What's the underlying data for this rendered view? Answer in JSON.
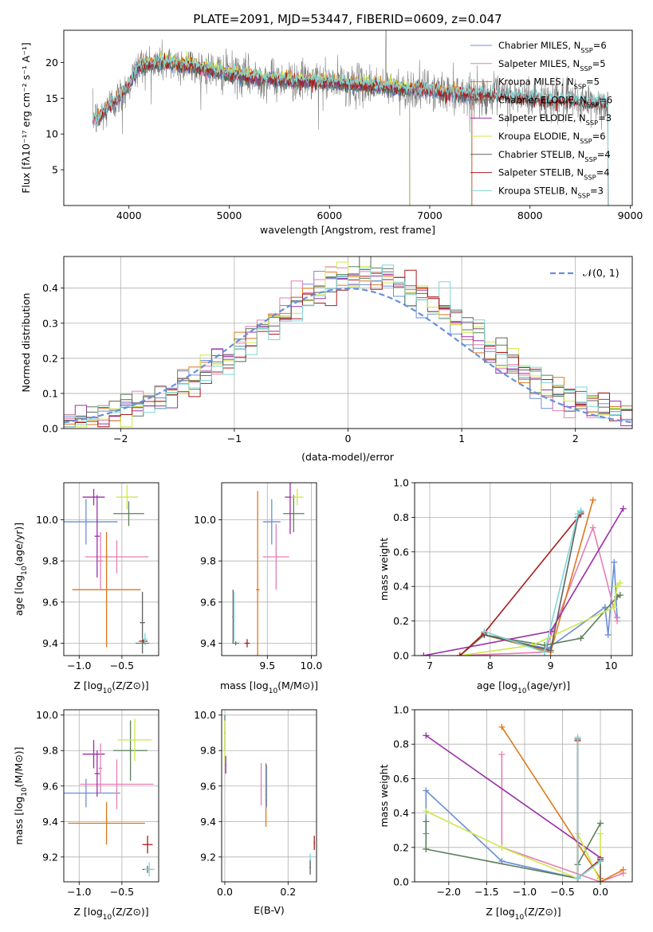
{
  "title": "PLATE=2091, MJD=53447, FIBERID=0609, z=0.047",
  "colors": {
    "chabrier_miles": "#6a8fd8",
    "salpeter_miles": "#e47fb5",
    "kroupa_miles": "#e0771a",
    "chabrier_elodie": "#5b7f5b",
    "salpeter_elodie": "#9b2fa8",
    "kroupa_elodie": "#cde84a",
    "chabrier_stelib": "#606060",
    "salpeter_stelib": "#a81c1c",
    "kroupa_stelib": "#7ed6d6"
  },
  "chart_data": [
    {
      "id": "spectrum",
      "type": "line",
      "xlabel": "wavelength [Angstrom, rest frame]",
      "ylabel": "Flux [fλ10⁻¹⁷ erg cm⁻² s⁻¹ A⁻¹]",
      "xlim": [
        3350,
        9020
      ],
      "ylim": [
        0,
        24.5
      ],
      "xticks": [
        4000,
        5000,
        6000,
        7000,
        8000,
        9000
      ],
      "yticks": [
        5,
        10,
        15,
        20
      ],
      "legend_position": "top-right",
      "continuum": {
        "x": [
          3640,
          3700,
          3800,
          3900,
          4000,
          4100,
          4300,
          4500,
          4800,
          5200,
          5600,
          6000,
          6400,
          6800,
          7200,
          7600,
          8000,
          8400,
          8800
        ],
        "y": [
          12.5,
          12.0,
          14.0,
          15.0,
          17.0,
          19.5,
          20.0,
          19.8,
          19.0,
          18.0,
          17.5,
          17.2,
          16.8,
          16.3,
          15.8,
          15.4,
          15.0,
          14.6,
          14.2
        ]
      },
      "series": [
        {
          "name": "Chabrier MILES, Nₛₛₚ=6",
          "label_main": "Chabrier MILES, N",
          "label_sub": "SSP",
          "label_tail": "=6",
          "color_key": "chabrier_miles",
          "xmin": 3640,
          "xmax": 7420
        },
        {
          "name": "Salpeter MILES, Nₛₛₚ=5",
          "label_main": "Salpeter MILES, N",
          "label_sub": "SSP",
          "label_tail": "=5",
          "color_key": "salpeter_miles",
          "xmin": 3640,
          "xmax": 7420
        },
        {
          "name": "Kroupa MILES, Nₛₛₚ=5",
          "label_main": "Kroupa MILES, N",
          "label_sub": "SSP",
          "label_tail": "=5",
          "color_key": "kroupa_miles",
          "xmin": 3640,
          "xmax": 7420
        },
        {
          "name": "Chabrier ELODIE, Nₛₛₚ=6",
          "label_main": "Chabrier ELODIE, N",
          "label_sub": "SSP",
          "label_tail": "=6",
          "color_key": "chabrier_elodie",
          "xmin": 4020,
          "xmax": 6800
        },
        {
          "name": "Salpeter ELODIE, Nₛₛₚ=3",
          "label_main": "Salpeter ELODIE, N",
          "label_sub": "SSP",
          "label_tail": "=3",
          "color_key": "salpeter_elodie",
          "xmin": 4020,
          "xmax": 6800
        },
        {
          "name": "Kroupa ELODIE, Nₛₛₚ=6",
          "label_main": "Kroupa ELODIE, N",
          "label_sub": "SSP",
          "label_tail": "=6",
          "color_key": "kroupa_elodie",
          "xmin": 4020,
          "xmax": 6800
        },
        {
          "name": "Chabrier STELIB, Nₛₛₚ=4",
          "label_main": "Chabrier STELIB, N",
          "label_sub": "SSP",
          "label_tail": "=4",
          "color_key": "chabrier_stelib",
          "xmin": 3640,
          "xmax": 8780
        },
        {
          "name": "Salpeter STELIB, Nₛₛₚ=4",
          "label_main": "Salpeter STELIB, N",
          "label_sub": "SSP",
          "label_tail": "=4",
          "color_key": "salpeter_stelib",
          "xmin": 3640,
          "xmax": 8780
        },
        {
          "name": "Kroupa STELIB, Nₛₛₚ=3",
          "label_main": "Kroupa STELIB, N",
          "label_sub": "SSP",
          "label_tail": "=3",
          "color_key": "kroupa_stelib",
          "xmin": 3640,
          "xmax": 8780
        }
      ]
    },
    {
      "id": "residuals",
      "type": "line",
      "xlabel": "(data-model)/error",
      "ylabel": "Normed distribution",
      "xlim": [
        -2.5,
        2.5
      ],
      "ylim": [
        0,
        0.49
      ],
      "xticks": [
        -2,
        -1,
        0,
        1,
        2
      ],
      "yticks": [
        0.0,
        0.1,
        0.2,
        0.3,
        0.4
      ],
      "grid": true,
      "legend_position": "top-right",
      "normal_curve": {
        "name": "N(0,1)",
        "label": "𝒩(0, 1)",
        "mean": 0.0,
        "sigma": 1.0,
        "color_key": "chabrier_miles"
      },
      "bin_width": 0.1,
      "hist_shape": {
        "mean": 0.15,
        "sigma": 0.95,
        "peak": 0.42
      }
    },
    {
      "id": "age_vs_z",
      "type": "scatter",
      "xlabel_main": "Z [log",
      "xlabel_sub": "10",
      "xlabel_tail": "(Z/Z⊙)]",
      "ylabel_main": "age  [log",
      "ylabel_sub": "10",
      "ylabel_tail": "(age/yr)]",
      "xlim": [
        -1.18,
        -0.07
      ],
      "ylim": [
        9.34,
        10.18
      ],
      "xticks": [
        -1.0,
        -0.5
      ],
      "yticks": [
        9.4,
        9.6,
        9.8,
        10.0
      ],
      "grid": true,
      "points": [
        {
          "color_key": "chabrier_miles",
          "x": -0.92,
          "y": 9.99,
          "xerr": 0.37,
          "yerr": 0.11
        },
        {
          "color_key": "salpeter_miles",
          "x": -0.56,
          "y": 9.82,
          "xerr": 0.37,
          "yerr": 0.08
        },
        {
          "color_key": "kroupa_miles",
          "x": -0.68,
          "y": 9.66,
          "xerr": 0.4,
          "yerr": 0.28
        },
        {
          "color_key": "chabrier_elodie",
          "x": -0.42,
          "y": 10.03,
          "xerr": 0.18,
          "yerr": 0.06
        },
        {
          "color_key": "salpeter_elodie",
          "x": -0.83,
          "y": 10.11,
          "xerr": 0.13,
          "yerr": 0.04
        },
        {
          "color_key": "kroupa_elodie",
          "x": -0.44,
          "y": 10.11,
          "xerr": 0.13,
          "yerr": 0.06
        },
        {
          "color_key": "salpeter_elodie",
          "x": -0.79,
          "y": 9.92,
          "xerr": 0.03,
          "yerr": 0.2
        },
        {
          "color_key": "salpeter_miles",
          "x": -0.75,
          "y": 9.8,
          "xerr": 0.03,
          "yerr": 0.14
        },
        {
          "color_key": "chabrier_stelib",
          "x": -0.26,
          "y": 9.5,
          "xerr": 0.03,
          "yerr": 0.15
        },
        {
          "color_key": "salpeter_stelib",
          "x": -0.25,
          "y": 9.41,
          "xerr": 0.05,
          "yerr": 0.01
        },
        {
          "color_key": "kroupa_stelib",
          "x": -0.23,
          "y": 9.42,
          "xerr": 0.03,
          "yerr": 0.03
        },
        {
          "color_key": "chabrier_elodie",
          "x": -0.26,
          "y": 9.4,
          "xerr": 0.08,
          "yerr": 0.01
        }
      ]
    },
    {
      "id": "age_vs_mass",
      "type": "scatter",
      "xlabel_main": "mass [log",
      "xlabel_sub": "10",
      "xlabel_tail": "(M/M⊙)]",
      "xlim": [
        8.98,
        10.06
      ],
      "ylim": [
        9.34,
        10.18
      ],
      "xticks": [
        9.5,
        10.0
      ],
      "yticks": [
        9.4,
        9.6,
        9.8,
        10.0
      ],
      "grid": true,
      "points": [
        {
          "color_key": "chabrier_miles",
          "x": 9.55,
          "y": 9.99,
          "xerr": 0.1,
          "yerr": 0.11
        },
        {
          "color_key": "salpeter_miles",
          "x": 9.6,
          "y": 9.82,
          "xerr": 0.15,
          "yerr": 0.16
        },
        {
          "color_key": "kroupa_miles",
          "x": 9.39,
          "y": 9.66,
          "xerr": 0.02,
          "yerr": 0.48
        },
        {
          "color_key": "chabrier_elodie",
          "x": 9.8,
          "y": 10.03,
          "xerr": 0.12,
          "yerr": 0.09
        },
        {
          "color_key": "salpeter_elodie",
          "x": 9.76,
          "y": 10.11,
          "xerr": 0.06,
          "yerr": 0.18
        },
        {
          "color_key": "kroupa_elodie",
          "x": 9.84,
          "y": 10.11,
          "xerr": 0.07,
          "yerr": 0.04
        },
        {
          "color_key": "chabrier_stelib",
          "x": 9.11,
          "y": 9.53,
          "xerr": 0.01,
          "yerr": 0.13
        },
        {
          "color_key": "kroupa_stelib",
          "x": 9.12,
          "y": 9.53,
          "xerr": 0.01,
          "yerr": 0.12
        },
        {
          "color_key": "salpeter_stelib",
          "x": 9.27,
          "y": 9.4,
          "xerr": 0.03,
          "yerr": 0.02
        },
        {
          "color_key": "chabrier_elodie",
          "x": 9.14,
          "y": 9.4,
          "xerr": 0.04,
          "yerr": 0.01
        }
      ]
    },
    {
      "id": "weight_vs_age",
      "type": "line",
      "xlabel_main": "age  [log",
      "xlabel_sub": "10",
      "xlabel_tail": "(age/yr)]",
      "ylabel": "mass weight",
      "xlim": [
        6.75,
        10.35
      ],
      "ylim": [
        0.0,
        1.0
      ],
      "xticks": [
        7,
        8,
        9,
        10
      ],
      "yticks": [
        0.0,
        0.2,
        0.4,
        0.6,
        0.8,
        1.0
      ],
      "grid": true,
      "series": [
        {
          "color_key": "chabrier_miles",
          "x": [
            7.9,
            8.95,
            9.9,
            9.95,
            10.05,
            10.1
          ],
          "y": [
            0.12,
            0.04,
            0.28,
            0.12,
            0.54,
            0.22
          ]
        },
        {
          "color_key": "salpeter_miles",
          "x": [
            7.5,
            8.9,
            9.7,
            10.1
          ],
          "y": [
            0.0,
            0.02,
            0.74,
            0.2
          ]
        },
        {
          "color_key": "kroupa_miles",
          "x": [
            7.5,
            7.9,
            9.0,
            9.7
          ],
          "y": [
            0.0,
            0.12,
            0.02,
            0.9
          ]
        },
        {
          "color_key": "chabrier_elodie",
          "x": [
            7.5,
            7.9,
            8.9,
            9.5,
            10.1,
            10.15
          ],
          "y": [
            0.0,
            0.12,
            0.06,
            0.1,
            0.34,
            0.35
          ]
        },
        {
          "color_key": "salpeter_elodie",
          "x": [
            6.9,
            9.0,
            10.2
          ],
          "y": [
            0.0,
            0.14,
            0.85
          ]
        },
        {
          "color_key": "kroupa_elodie",
          "x": [
            7.5,
            8.7,
            10.05,
            10.1,
            10.15
          ],
          "y": [
            0.0,
            0.06,
            0.28,
            0.4,
            0.42
          ]
        },
        {
          "color_key": "chabrier_stelib",
          "x": [
            7.9,
            9.0,
            9.45,
            9.5
          ],
          "y": [
            0.12,
            0.03,
            0.8,
            0.83
          ]
        },
        {
          "color_key": "salpeter_stelib",
          "x": [
            7.5,
            7.9,
            9.5
          ],
          "y": [
            0.0,
            0.13,
            0.82
          ]
        },
        {
          "color_key": "kroupa_stelib",
          "x": [
            7.9,
            8.9,
            9.45,
            9.5
          ],
          "y": [
            0.14,
            0.02,
            0.82,
            0.84
          ]
        }
      ]
    },
    {
      "id": "mass_vs_z",
      "type": "scatter",
      "xlabel_main": "Z [log",
      "xlabel_sub": "10",
      "xlabel_tail": "(Z/Z⊙)]",
      "ylabel_main": "mass [log",
      "ylabel_sub": "10",
      "ylabel_tail": "(M/M⊙)]",
      "xlim": [
        -1.18,
        -0.07
      ],
      "ylim": [
        9.06,
        10.03
      ],
      "xticks": [
        -1.0,
        -0.5
      ],
      "yticks": [
        9.2,
        9.4,
        9.6,
        9.8,
        10.0
      ],
      "grid": true,
      "points": [
        {
          "color_key": "chabrier_miles",
          "x": -0.92,
          "y": 9.56,
          "xerr": 0.4,
          "yerr": 0.08
        },
        {
          "color_key": "salpeter_miles",
          "x": -0.56,
          "y": 9.61,
          "xerr": 0.43,
          "yerr": 0.14
        },
        {
          "color_key": "kroupa_miles",
          "x": -0.68,
          "y": 9.39,
          "xerr": 0.45,
          "yerr": 0.12
        },
        {
          "color_key": "chabrier_elodie",
          "x": -0.4,
          "y": 9.8,
          "xerr": 0.2,
          "yerr": 0.17
        },
        {
          "color_key": "salpeter_elodie",
          "x": -0.83,
          "y": 9.78,
          "xerr": 0.13,
          "yerr": 0.08
        },
        {
          "color_key": "kroupa_elodie",
          "x": -0.35,
          "y": 9.86,
          "xerr": 0.2,
          "yerr": 0.12
        },
        {
          "color_key": "salpeter_stelib",
          "x": -0.2,
          "y": 9.27,
          "xerr": 0.06,
          "yerr": 0.05
        },
        {
          "color_key": "chabrier_stelib",
          "x": -0.2,
          "y": 9.13,
          "xerr": 0.06,
          "yerr": 0.02
        },
        {
          "color_key": "kroupa_stelib",
          "x": -0.18,
          "y": 9.13,
          "xerr": 0.06,
          "yerr": 0.04
        },
        {
          "color_key": "salpeter_elodie",
          "x": -0.79,
          "y": 9.67,
          "xerr": 0.03,
          "yerr": 0.13
        },
        {
          "color_key": "salpeter_miles",
          "x": -0.75,
          "y": 9.7,
          "xerr": 0.02,
          "yerr": 0.14
        }
      ]
    },
    {
      "id": "mass_vs_ebv",
      "type": "scatter",
      "xlabel": "E(B-V)",
      "xlim": [
        -0.01,
        0.29
      ],
      "ylim": [
        9.06,
        10.03
      ],
      "xticks": [
        0.0,
        0.2
      ],
      "yticks": [
        9.2,
        9.4,
        9.6,
        9.8,
        10.0
      ],
      "grid": true,
      "points": [
        {
          "color_key": "chabrier_elodie",
          "x": 0.0,
          "y": 9.9,
          "xerr": 0.002,
          "yerr": 0.1
        },
        {
          "color_key": "kroupa_elodie",
          "x": 0.0,
          "y": 9.85,
          "xerr": 0.002,
          "yerr": 0.12
        },
        {
          "color_key": "salpeter_elodie",
          "x": 0.003,
          "y": 9.72,
          "xerr": 0.002,
          "yerr": 0.05
        },
        {
          "color_key": "salpeter_miles",
          "x": 0.115,
          "y": 9.61,
          "xerr": 0.002,
          "yerr": 0.12
        },
        {
          "color_key": "kroupa_miles",
          "x": 0.13,
          "y": 9.55,
          "xerr": 0.002,
          "yerr": 0.18
        },
        {
          "color_key": "chabrier_miles",
          "x": 0.132,
          "y": 9.6,
          "xerr": 0.002,
          "yerr": 0.12
        },
        {
          "color_key": "salpeter_stelib",
          "x": 0.283,
          "y": 9.28,
          "xerr": 0.002,
          "yerr": 0.04
        },
        {
          "color_key": "kroupa_stelib",
          "x": 0.27,
          "y": 9.18,
          "xerr": 0.002,
          "yerr": 0.04
        },
        {
          "color_key": "chabrier_stelib",
          "x": 0.27,
          "y": 9.14,
          "xerr": 0.002,
          "yerr": 0.04
        }
      ]
    },
    {
      "id": "weight_vs_z",
      "type": "line",
      "xlabel_main": "Z [log",
      "xlabel_sub": "10",
      "xlabel_tail": "(Z/Z⊙)]",
      "ylabel": "mass weight",
      "xlim": [
        -2.45,
        0.42
      ],
      "ylim": [
        0.0,
        1.0
      ],
      "xticks": [
        -2.0,
        -1.5,
        -1.0,
        -0.5,
        0.0
      ],
      "yticks": [
        0.0,
        0.2,
        0.4,
        0.6,
        0.8,
        1.0
      ],
      "grid": true,
      "series": [
        {
          "color_key": "chabrier_miles",
          "x": [
            -2.3,
            -2.3,
            -1.3,
            -0.3,
            0.0
          ],
          "y": [
            0.28,
            0.53,
            0.12,
            0.02,
            0.12
          ]
        },
        {
          "color_key": "salpeter_miles",
          "x": [
            -1.3,
            -1.3,
            0.0,
            0.3
          ],
          "y": [
            0.74,
            0.2,
            0.0,
            0.05
          ]
        },
        {
          "color_key": "kroupa_miles",
          "x": [
            -1.3,
            0.0,
            0.0,
            0.3
          ],
          "y": [
            0.9,
            0.02,
            0.0,
            0.07
          ]
        },
        {
          "color_key": "chabrier_elodie",
          "x": [
            -2.3,
            -2.3,
            -0.3,
            -0.3,
            0.0
          ],
          "y": [
            0.35,
            0.19,
            0.02,
            0.1,
            0.34
          ]
        },
        {
          "color_key": "salpeter_elodie",
          "x": [
            -2.3,
            0.0
          ],
          "y": [
            0.85,
            0.14
          ]
        },
        {
          "color_key": "kroupa_elodie",
          "x": [
            -2.3,
            -1.3,
            -0.3,
            -0.3,
            0.0,
            0.0
          ],
          "y": [
            0.41,
            0.2,
            0.02,
            0.28,
            0.0,
            0.28
          ]
        },
        {
          "color_key": "chabrier_stelib",
          "x": [
            -0.3,
            -0.3,
            0.0,
            0.0
          ],
          "y": [
            0.83,
            0.02,
            0.12,
            0.0
          ]
        },
        {
          "color_key": "salpeter_stelib",
          "x": [
            -0.3,
            -0.3,
            0.0
          ],
          "y": [
            0.82,
            0.02,
            0.13
          ]
        },
        {
          "color_key": "kroupa_stelib",
          "x": [
            -0.3,
            -0.3,
            0.0
          ],
          "y": [
            0.84,
            0.02,
            0.12
          ]
        }
      ]
    }
  ]
}
